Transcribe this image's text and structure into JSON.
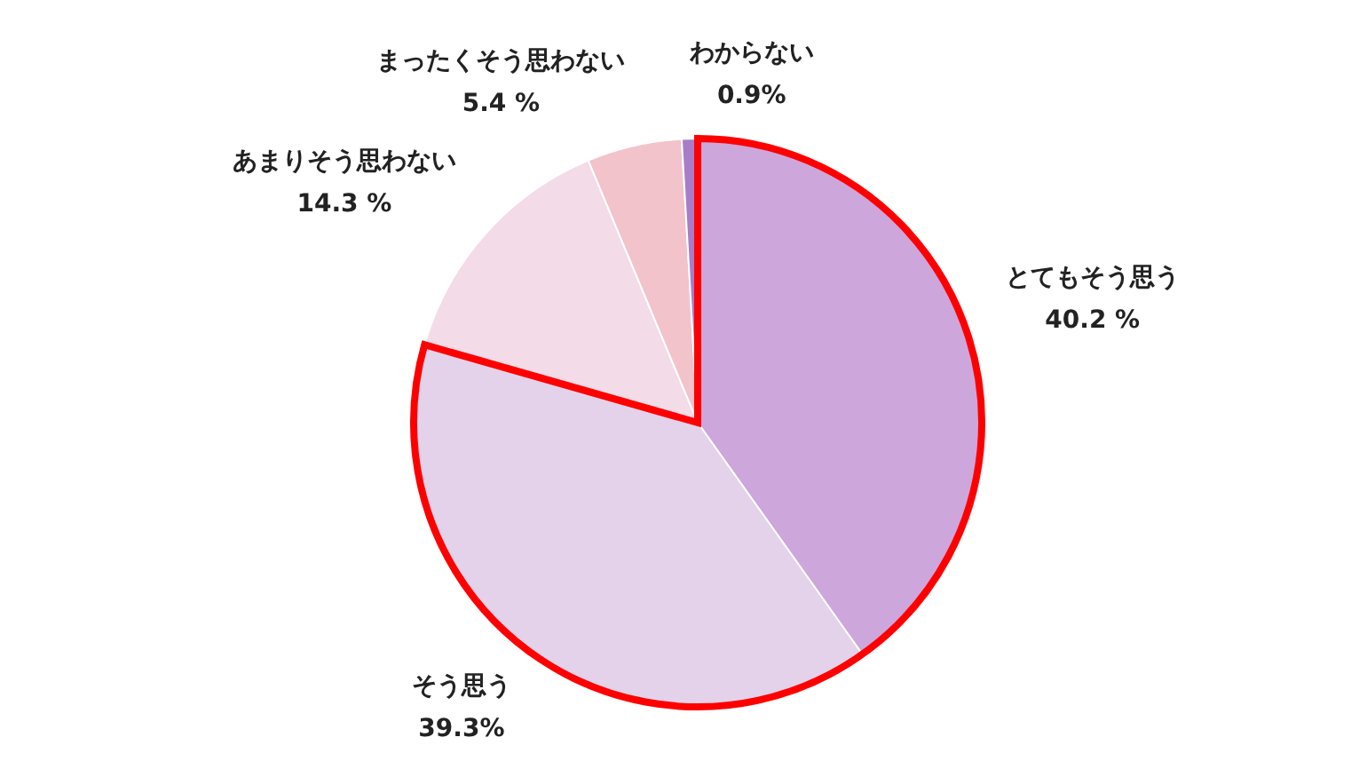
{
  "chart_data": {
    "type": "pie",
    "categories": [
      "とてもそう思う",
      "そう思う",
      "あまりそう思わない",
      "まったくそう思わない",
      "わからない"
    ],
    "values": [
      40.2,
      39.3,
      14.3,
      5.4,
      0.9
    ],
    "value_labels": [
      "40.2 %",
      "39.3%",
      "14.3 %",
      "5.4 %",
      "0.9%"
    ],
    "colors": [
      "#cda6dc",
      "#e3d2ea",
      "#f3dbe8",
      "#f2c3cb",
      "#a97cc8"
    ],
    "legend": false
  }
}
